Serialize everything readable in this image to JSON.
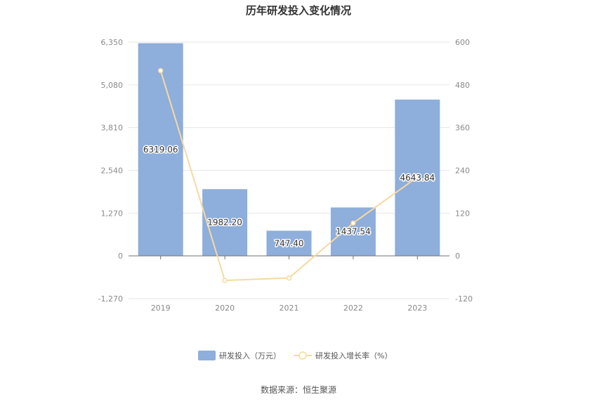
{
  "chart_data": {
    "type": "bar",
    "title": "历年研发投入变化情况",
    "categories": [
      "2019",
      "2020",
      "2021",
      "2022",
      "2023"
    ],
    "series": [
      {
        "name": "研发投入（万元）",
        "type": "bar",
        "axis": "left",
        "color": "#8eaedb",
        "values": [
          6319.06,
          1982.2,
          747.4,
          1437.54,
          4643.84
        ],
        "labels": [
          "6319.06",
          "1982.20",
          "747.40",
          "1437.54",
          "4643.84"
        ]
      },
      {
        "name": "研发投入增长率（%）",
        "type": "line",
        "axis": "right",
        "color": "#f7d9a0",
        "values": [
          520,
          -69,
          -62,
          92,
          221
        ]
      }
    ],
    "y_left": {
      "lim": [
        -1270,
        6350
      ],
      "ticks": [
        6350,
        5080,
        3810,
        2540,
        1270,
        0,
        -1270
      ],
      "tick_labels": [
        "6,350",
        "5,080",
        "3,810",
        "2,540",
        "1,270",
        "0",
        "-1,270"
      ]
    },
    "y_right": {
      "lim": [
        -120,
        600
      ],
      "ticks": [
        600,
        480,
        360,
        240,
        120,
        0,
        -120
      ],
      "tick_labels": [
        "600",
        "480",
        "360",
        "240",
        "120",
        "0",
        "-120"
      ]
    },
    "grid": true,
    "legend_position": "bottom"
  },
  "source": "数据来源：恒生聚源"
}
